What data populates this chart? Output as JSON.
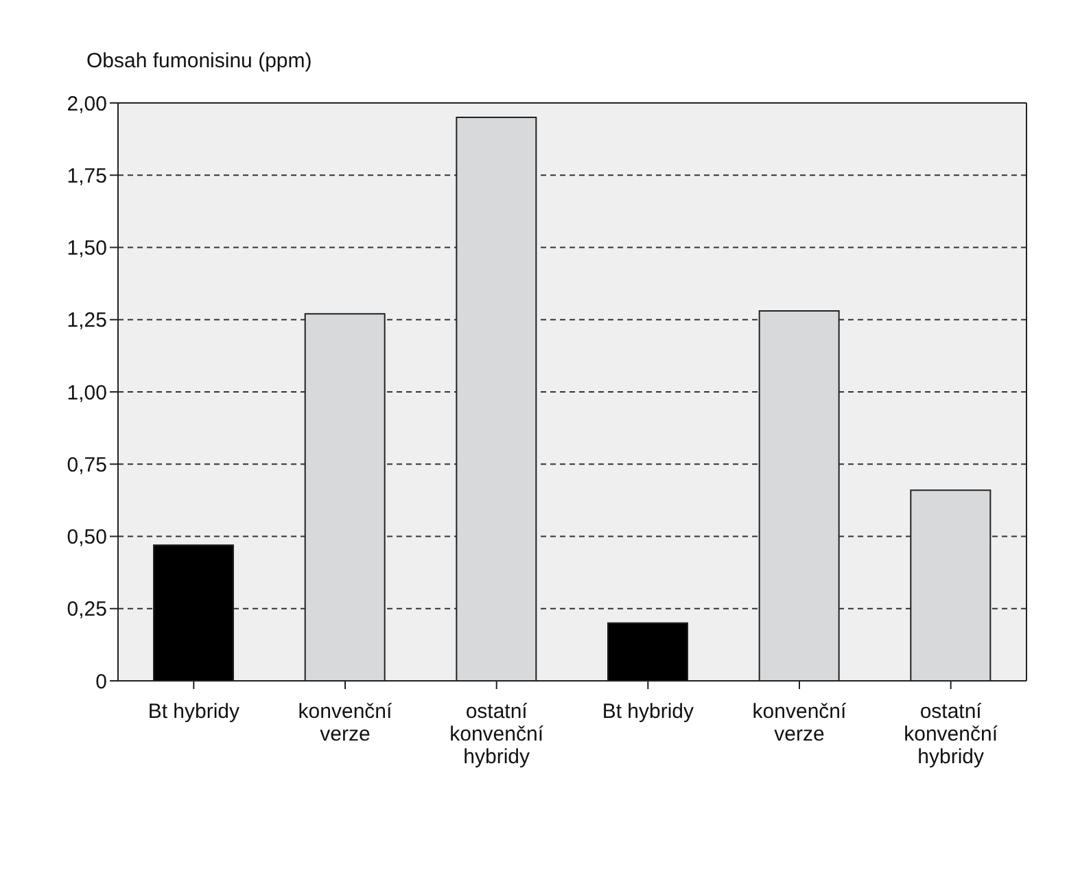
{
  "chart_data": {
    "type": "bar",
    "ylabel": "Obsah fumonisinu (ppm)",
    "categories": [
      "Bt hybridy",
      "konvenční verze",
      "ostatní konvenční hybridy",
      "Bt hybridy",
      "konvenční verze",
      "ostatní konvenční hybridy"
    ],
    "values": [
      0.47,
      1.27,
      1.95,
      0.2,
      1.28,
      0.66
    ],
    "colors": [
      "#000000",
      "#d8d9db",
      "#d8d9db",
      "#000000",
      "#d8d9db",
      "#d8d9db"
    ],
    "ylim": [
      0,
      2
    ],
    "yticks": [
      0,
      {
        "value": 0.25,
        "label": "0,25"
      },
      {
        "value": 0.5,
        "label": "0,50"
      },
      {
        "value": 0.75,
        "label": "0,75"
      },
      {
        "value": 1,
        "label": "1,00"
      },
      {
        "value": 1.25,
        "label": "1,25"
      },
      {
        "value": 1.5,
        "label": "1,50"
      },
      {
        "value": 1.75,
        "label": "1,75"
      },
      {
        "value": 2,
        "label": "2,00"
      }
    ],
    "grid": "y"
  }
}
